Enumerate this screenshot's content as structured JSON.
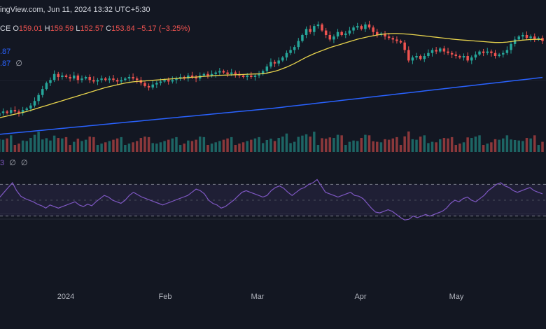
{
  "header": {
    "watermark": "ingView.com, Jun 11, 2024 13:32 UTC+5:30"
  },
  "ohlc": {
    "o_label": "CE O",
    "o": "159.01",
    "h_label": "H",
    "h": "159.59",
    "l_label": "L",
    "l": "152.57",
    "c_label": "C",
    "c": "153.84",
    "change": "−5.17 (−3.25%)"
  },
  "indicators": {
    "ma_fast": {
      "value": ".87",
      "color": "#2962ff"
    },
    "ma_slow": {
      "value": ".87",
      "extra": "∅",
      "color": "#2962ff"
    },
    "rsi": {
      "value": "3",
      "extra1": "∅",
      "extra2": "∅"
    }
  },
  "colors": {
    "background": "#131722",
    "up": "#26a69a",
    "down": "#ef5350",
    "ma_yellow": "#e8d44d",
    "ma_blue": "#2962ff",
    "rsi_line": "#7e57c2",
    "rsi_band": "#7e57c2",
    "grid": "#1e222d",
    "axis_text": "#b2b5be"
  },
  "chart_data": [
    {
      "type": "candlestick",
      "x_axis": {
        "labels": [
          "2024",
          "Feb",
          "Mar",
          "Apr",
          "May"
        ]
      },
      "y_range": [
        88,
        172
      ],
      "closes": [
        104,
        105,
        104,
        106,
        107,
        106,
        108,
        107,
        106,
        108,
        109,
        111,
        114,
        118,
        122,
        126,
        128,
        132,
        130,
        131,
        130,
        129,
        131,
        128,
        129,
        130,
        128,
        127,
        128,
        129,
        128,
        129,
        128,
        127,
        128,
        129,
        130,
        129,
        128,
        126,
        124,
        123,
        125,
        126,
        127,
        128,
        127,
        128,
        129,
        130,
        129,
        131,
        130,
        129,
        131,
        132,
        131,
        132,
        133,
        134,
        133,
        132,
        133,
        132,
        131,
        130,
        131,
        130,
        131,
        132,
        134,
        137,
        140,
        139,
        141,
        143,
        146,
        148,
        150,
        154,
        158,
        162,
        160,
        164,
        165,
        161,
        158,
        155,
        157,
        160,
        158,
        159,
        161,
        163,
        164,
        162,
        165,
        163,
        160,
        158,
        159,
        157,
        156,
        155,
        154,
        153,
        148,
        141,
        143,
        144,
        142,
        144,
        146,
        148,
        147,
        149,
        147,
        146,
        145,
        144,
        143,
        144,
        141,
        143,
        145,
        147,
        146,
        147,
        146,
        144,
        145,
        146,
        148,
        152,
        155,
        157,
        158,
        156,
        157,
        155,
        156,
        154
      ],
      "ma_yellow": [
        101,
        101.6,
        102.2,
        102.8,
        103.4,
        104,
        104.6,
        105.2,
        105.8,
        106.4,
        107,
        107.8,
        108.6,
        109.4,
        110.2,
        111,
        111.8,
        112.6,
        113.4,
        114.2,
        115,
        115.8,
        116.6,
        117.4,
        118.2,
        119,
        119.8,
        120.6,
        121.4,
        122.2,
        123,
        123.6,
        124.2,
        124.8,
        125.4,
        126,
        126.4,
        126.8,
        127,
        127.2,
        127.4,
        127.6,
        127.8,
        128,
        128.2,
        128.4,
        128.6,
        128.8,
        129,
        129.2,
        129.4,
        129.6,
        129.8,
        130,
        130.2,
        130.4,
        130.6,
        130.8,
        131,
        131.1,
        131.2,
        131.3,
        131.4,
        131.5,
        131.6,
        131.7,
        131.8,
        131.9,
        132,
        132.1,
        132.2,
        132.6,
        133.2,
        133.8,
        134.6,
        135.6,
        136.6,
        137.8,
        139,
        140.4,
        141.8,
        143.2,
        144.4,
        145.6,
        146.6,
        147.6,
        148.6,
        149.6,
        150.4,
        151.2,
        152,
        152.8,
        153.6,
        154.4,
        155.2,
        155.8,
        156.4,
        157,
        157.5,
        158,
        158.4,
        158.7,
        158.9,
        159,
        159,
        158.9,
        158.7,
        158.5,
        158.3,
        158,
        157.7,
        157.4,
        157.1,
        156.8,
        156.5,
        156.2,
        155.9,
        155.6,
        155.3,
        155,
        154.8,
        154.6,
        154.4,
        154.2,
        154,
        153.8,
        153.6,
        153.4,
        153.2,
        153,
        153,
        153.1,
        153.3,
        153.6,
        154,
        154.3,
        154.6,
        154.8,
        155,
        155.1,
        155.1,
        155.1
      ],
      "ma_blue": [
        91,
        91.25,
        91.5,
        91.75,
        92,
        92.25,
        92.5,
        92.75,
        93,
        93.25,
        93.5,
        93.75,
        94,
        94.25,
        94.5,
        94.75,
        95,
        95.25,
        95.5,
        95.75,
        96,
        96.25,
        96.5,
        96.75,
        97,
        97.25,
        97.5,
        97.75,
        98,
        98.25,
        98.5,
        98.75,
        99,
        99.25,
        99.5,
        99.75,
        100,
        100.25,
        100.5,
        100.75,
        101,
        101.25,
        101.5,
        101.75,
        102,
        102.25,
        102.5,
        102.75,
        103,
        103.25,
        103.5,
        103.75,
        104,
        104.25,
        104.5,
        104.75,
        105,
        105.25,
        105.5,
        105.75,
        106,
        106.25,
        106.5,
        106.75,
        107,
        107.25,
        107.5,
        107.75,
        108,
        108.25,
        108.5,
        108.75,
        109,
        109.3,
        109.6,
        109.9,
        110.2,
        110.5,
        110.8,
        111.1,
        111.4,
        111.7,
        112,
        112.3,
        112.6,
        112.9,
        113.2,
        113.5,
        113.8,
        114.1,
        114.4,
        114.7,
        115,
        115.3,
        115.6,
        115.9,
        116.2,
        116.5,
        116.8,
        117.1,
        117.4,
        117.7,
        118,
        118.3,
        118.6,
        118.9,
        119.2,
        119.5,
        119.8,
        120.1,
        120.4,
        120.7,
        121,
        121.3,
        121.6,
        121.9,
        122.2,
        122.5,
        122.8,
        123.1,
        123.4,
        123.7,
        124,
        124.3,
        124.6,
        124.9,
        125.2,
        125.5,
        125.8,
        126.1,
        126.4,
        126.7,
        127,
        127.3,
        127.6,
        127.9,
        128.2,
        128.5,
        128.8,
        129.1,
        129.4,
        129.7
      ]
    },
    {
      "type": "bar",
      "name": "volume",
      "y_range": [
        0,
        20
      ]
    },
    {
      "type": "line",
      "name": "rsi",
      "y_range": [
        20,
        80
      ],
      "bands": [
        30,
        70
      ],
      "values": [
        55,
        52,
        50,
        54,
        60,
        66,
        72,
        62,
        55,
        52,
        50,
        48,
        45,
        43,
        40,
        44,
        42,
        40,
        42,
        44,
        46,
        48,
        44,
        42,
        45,
        43,
        48,
        52,
        56,
        54,
        50,
        48,
        46,
        50,
        56,
        60,
        57,
        54,
        52,
        50,
        48,
        46,
        44,
        46,
        48,
        50,
        52,
        54,
        56,
        60,
        64,
        62,
        58,
        50,
        46,
        44,
        40,
        42,
        46,
        50,
        55,
        60,
        62,
        60,
        58,
        56,
        54,
        56,
        62,
        66,
        68,
        65,
        60,
        56,
        60,
        64,
        66,
        70,
        72,
        76,
        68,
        60,
        58,
        56,
        54,
        56,
        58,
        60,
        56,
        55,
        52,
        46,
        40,
        35,
        34,
        36,
        38,
        36,
        32,
        28,
        25,
        26,
        30,
        28,
        30,
        32,
        30,
        32,
        34,
        36,
        40,
        46,
        50,
        48,
        52,
        54,
        50,
        48,
        52,
        56,
        62,
        66,
        70,
        72,
        68,
        66,
        62,
        60,
        62,
        64,
        66,
        62,
        60,
        58
      ]
    }
  ]
}
